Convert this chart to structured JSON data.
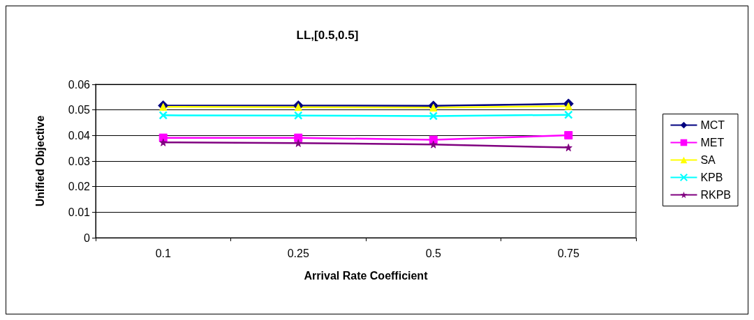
{
  "chart_data": {
    "type": "line",
    "title": "LL,[0.5,0.5]",
    "xlabel": "Arrival Rate Coefficient",
    "ylabel": "Unified Objective",
    "categories": [
      "0.1",
      "0.25",
      "0.5",
      "0.75"
    ],
    "series": [
      {
        "name": "MCT",
        "color": "#000080",
        "marker": "diamond",
        "values": [
          0.0517,
          0.0517,
          0.0516,
          0.0524
        ]
      },
      {
        "name": "MET",
        "color": "#ff00ff",
        "marker": "square",
        "values": [
          0.0391,
          0.0391,
          0.0383,
          0.0401
        ]
      },
      {
        "name": "SA",
        "color": "#ffff00",
        "marker": "triangle",
        "values": [
          0.0512,
          0.0511,
          0.0509,
          0.0515
        ]
      },
      {
        "name": "KPB",
        "color": "#00ffff",
        "marker": "cross",
        "values": [
          0.0479,
          0.0478,
          0.0476,
          0.0481
        ]
      },
      {
        "name": "RKPB",
        "color": "#800080",
        "marker": "star",
        "values": [
          0.0373,
          0.037,
          0.0365,
          0.0353
        ]
      }
    ],
    "ylim": [
      0,
      0.06
    ],
    "yticks": [
      0,
      0.01,
      0.02,
      0.03,
      0.04,
      0.05,
      0.06
    ],
    "grid": "y",
    "legend": "right"
  }
}
